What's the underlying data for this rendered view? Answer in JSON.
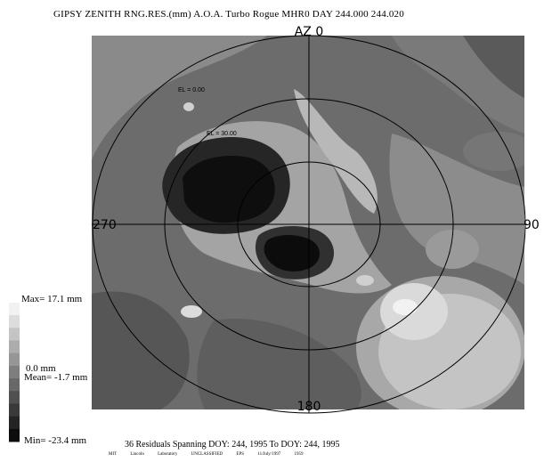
{
  "title": "GIPSY ZENITH RNG.RES.(mm)     A.O.A. Turbo Rogue MHR0 DAY 244.000 244.020",
  "chart_data": {
    "type": "heatmap",
    "projection": "polar sky plot (azimuth / elevation)",
    "azimuth_labels": {
      "top": "AZ 0",
      "left": "270",
      "right": "90",
      "bottom": "180"
    },
    "elevation_labels": [
      "EL = 0.00",
      "EL = 30.00"
    ],
    "colorscale": "grayscale",
    "legend": {
      "max": "Max=  17.1 mm",
      "zero": "0.0 mm",
      "mean": "Mean=  -1.7 mm",
      "min": "Min= -23.4 mm",
      "swatches": [
        "#f2f2f2",
        "#dcdcdc",
        "#c4c4c4",
        "#acacac",
        "#969696",
        "#7e7e7e",
        "#686868",
        "#505050",
        "#3a3a3a",
        "#242424",
        "#0c0c0c"
      ]
    },
    "units": "mm",
    "max": 17.1,
    "mean": -1.7,
    "min": -23.4
  },
  "footer": "36 Residuals Spanning DOY: 244, 1995 To DOY: 244, 1995",
  "credit": "MIT Lincoln Laboratory UNCLASSIFIED EPS 11/July/1997 1959"
}
